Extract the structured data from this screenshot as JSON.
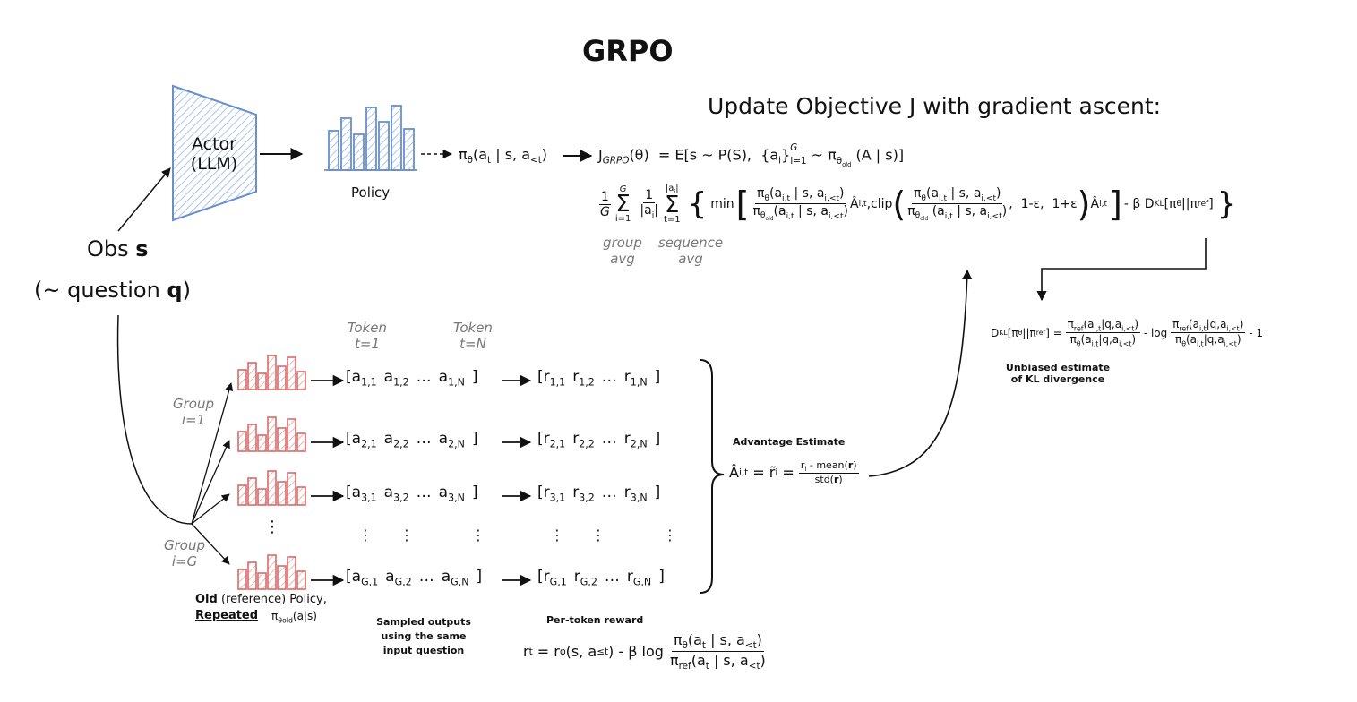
{
  "title": "GRPO",
  "actor": {
    "line1": "Actor",
    "line2": "(LLM)"
  },
  "policy_label": "Policy",
  "obs": {
    "line1": "Obs ",
    "s": "s",
    "line2": "(~ question ",
    "q": "q",
    "close": ")"
  },
  "update_heading": "Update Objective J with gradient ascent:",
  "policy_dist": "πθ(at | s, a<t)",
  "objective_line1": "JGRPO(θ)  = E[s ~ P(S),  {ai}Gi=1 ~ πθold (A | s)]",
  "objective_line2": "1/G Σ(i=1..G) 1/|ai| Σ(t=1..|ai|) { min [ πθ(ai,t | s, ai,<t) / πθold(ai,t | s, ai,<t) Âi,t , clip( πθ(ai,t | s, ai,<t) / πθold(ai,t | s, ai,<t), 1-ε, 1+ε ) Âi,t ] - β DKL[πθ||πref] }",
  "group_avg": {
    "line1": "group",
    "line2": "avg"
  },
  "sequence_avg": {
    "line1": "sequence",
    "line2": "avg"
  },
  "kl": {
    "formula": "DKL[πθ||πref] = πref(ai,t|q,ai,<t)/πθ(ai,t|q,ai,<t) - log πref(ai,t|q,ai,<t)/πθ(ai,t|q,ai,<t) - 1",
    "note_line1": "Unbiased estimate",
    "note_line2": "of KL divergence"
  },
  "token_labels": [
    {
      "line1": "Token",
      "line2": "t=1"
    },
    {
      "line1": "Token",
      "line2": "t=N"
    }
  ],
  "group_labels": [
    {
      "line1": "Group",
      "line2": "i=1"
    },
    {
      "line1": "Group",
      "line2": "i=G"
    }
  ],
  "rows": [
    {
      "actions": [
        "a1,1",
        "a1,2",
        "...",
        "a1,N"
      ],
      "rewards": [
        "r1,1",
        "r1,2",
        "...",
        "r1,N"
      ]
    },
    {
      "actions": [
        "a2,1",
        "a2,2",
        "...",
        "a2,N"
      ],
      "rewards": [
        "r2,1",
        "r2,2",
        "...",
        "r2,N"
      ]
    },
    {
      "actions": [
        "a3,1",
        "a3,2",
        "...",
        "a3,N"
      ],
      "rewards": [
        "r3,1",
        "r3,2",
        "...",
        "r3,N"
      ]
    },
    {
      "actions": [
        "aG,1",
        "aG,2",
        "...",
        "aG,N"
      ],
      "rewards": [
        "rG,1",
        "rG,2",
        "...",
        "rG,N"
      ]
    }
  ],
  "advantage": {
    "label": "Advantage Estimate",
    "formula": "Âi,t = r̃i = (ri - mean(r)) / std(r)"
  },
  "old_policy": {
    "bold1": "Old",
    "rest1": " (reference) Policy,",
    "bold2": "Repeated",
    "pi": "πθold(a|s)"
  },
  "sampled_outputs": {
    "line1": "Sampled outputs",
    "line2": "using the same",
    "line3": "input question"
  },
  "per_token_reward": {
    "label": "Per-token reward",
    "formula": "rt = rφ(s, a≤t) - β log πθ(at | s, a<t) / πref(at | s, a<t)"
  },
  "colors": {
    "actor": "#6a8fcf",
    "policy_bars": "#6a8fcf",
    "old_policy_bars": "#d96b6b",
    "text": "#111111",
    "muted": "#777777"
  }
}
